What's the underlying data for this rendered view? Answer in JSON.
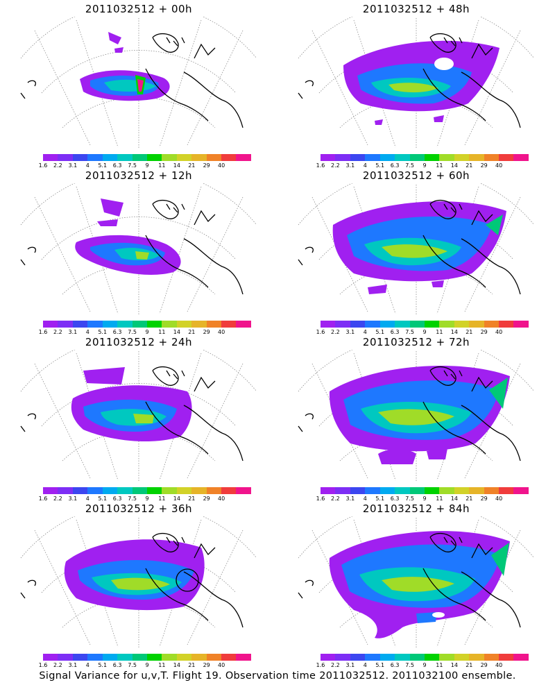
{
  "panels": [
    {
      "title": "2011032512 + 00h",
      "lead_hours": 0
    },
    {
      "title": "2011032512 + 48h",
      "lead_hours": 48
    },
    {
      "title": "2011032512 + 12h",
      "lead_hours": 12
    },
    {
      "title": "2011032512 + 60h",
      "lead_hours": 60
    },
    {
      "title": "2011032512 + 24h",
      "lead_hours": 24
    },
    {
      "title": "2011032512 + 72h",
      "lead_hours": 72
    },
    {
      "title": "2011032512 + 36h",
      "lead_hours": 36
    },
    {
      "title": "2011032512 + 84h",
      "lead_hours": 84
    }
  ],
  "colorbar": {
    "labels": [
      "1.6",
      "2.2",
      "3.1",
      "4",
      "5.1",
      "6.3",
      "7.5",
      "9",
      "11",
      "14",
      "21",
      "29",
      "40"
    ],
    "colors": [
      "#a020f0",
      "#7d2ef5",
      "#3c46f0",
      "#1e78ff",
      "#00aaf0",
      "#00c8c0",
      "#00c878",
      "#00d200",
      "#a0dc28",
      "#d2d228",
      "#e6b428",
      "#f08228",
      "#f03c3c",
      "#f0148c"
    ]
  },
  "map_colors": {
    "land_outline": "#000000",
    "grid": "#8c8c8c"
  },
  "footer": "Signal Variance for u,v,T. Flight 19. Observation time 2011032512. 2011032100 ensemble."
}
